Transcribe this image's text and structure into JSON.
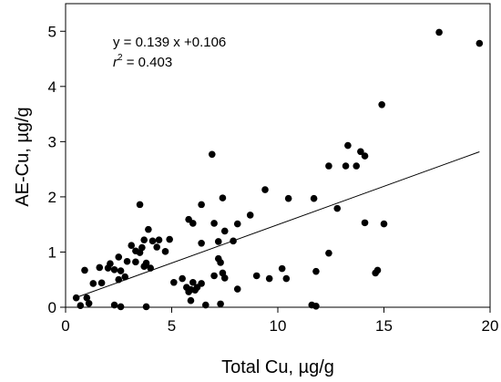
{
  "chart_data": {
    "type": "scatter",
    "xlabel": "Total Cu, µg/g",
    "ylabel": "AE-Cu, µg/g",
    "xlim": [
      0,
      20
    ],
    "ylim": [
      0,
      5.5
    ],
    "xticks": [
      "0",
      "5",
      "10",
      "15",
      "20"
    ],
    "yticks": [
      "0",
      "1",
      "2",
      "3",
      "4",
      "5"
    ],
    "grid": false,
    "annotation": {
      "equation": "y = 0.139 x +0.106",
      "r2_prefix": "r",
      "r2_sup": "2",
      "r2_value": " = 0.403"
    },
    "fit_line": {
      "slope": 0.139,
      "intercept": 0.106,
      "x_range": [
        0.6,
        19.5
      ]
    },
    "points": [
      [
        17.6,
        4.98
      ],
      [
        19.5,
        4.78
      ],
      [
        14.9,
        3.67
      ],
      [
        13.3,
        2.93
      ],
      [
        13.9,
        2.82
      ],
      [
        14.1,
        2.74
      ],
      [
        13.2,
        2.56
      ],
      [
        13.7,
        2.56
      ],
      [
        12.4,
        2.56
      ],
      [
        12.8,
        1.79
      ],
      [
        6.9,
        2.77
      ],
      [
        9.4,
        2.13
      ],
      [
        10.5,
        1.97
      ],
      [
        11.7,
        1.97
      ],
      [
        7.4,
        1.98
      ],
      [
        3.5,
        1.86
      ],
      [
        6.4,
        1.86
      ],
      [
        7.0,
        1.52
      ],
      [
        14.1,
        1.53
      ],
      [
        15.0,
        1.51
      ],
      [
        5.8,
        1.59
      ],
      [
        6.0,
        1.52
      ],
      [
        8.7,
        1.67
      ],
      [
        8.1,
        1.51
      ],
      [
        7.5,
        1.38
      ],
      [
        3.9,
        1.41
      ],
      [
        4.1,
        1.2
      ],
      [
        4.3,
        1.09
      ],
      [
        4.4,
        1.22
      ],
      [
        4.7,
        1.01
      ],
      [
        4.9,
        1.23
      ],
      [
        3.1,
        1.12
      ],
      [
        3.3,
        1.02
      ],
      [
        3.6,
        1.08
      ],
      [
        3.7,
        1.22
      ],
      [
        7.9,
        1.2
      ],
      [
        7.2,
        1.19
      ],
      [
        6.4,
        1.16
      ],
      [
        2.5,
        0.91
      ],
      [
        2.9,
        0.83
      ],
      [
        3.3,
        0.82
      ],
      [
        3.5,
        0.99
      ],
      [
        3.8,
        0.8
      ],
      [
        4.0,
        0.71
      ],
      [
        3.7,
        0.74
      ],
      [
        7.2,
        0.88
      ],
      [
        7.3,
        0.81
      ],
      [
        12.4,
        0.98
      ],
      [
        2.1,
        0.79
      ],
      [
        1.6,
        0.72
      ],
      [
        0.9,
        0.67
      ],
      [
        1.7,
        0.44
      ],
      [
        2.0,
        0.71
      ],
      [
        2.3,
        0.68
      ],
      [
        2.6,
        0.66
      ],
      [
        2.5,
        0.5
      ],
      [
        2.8,
        0.55
      ],
      [
        1.3,
        0.43
      ],
      [
        1.0,
        0.17
      ],
      [
        0.5,
        0.17
      ],
      [
        0.7,
        0.03
      ],
      [
        1.1,
        0.07
      ],
      [
        2.3,
        0.04
      ],
      [
        2.6,
        0.01
      ],
      [
        3.8,
        0.01
      ],
      [
        5.1,
        0.45
      ],
      [
        5.5,
        0.52
      ],
      [
        5.7,
        0.36
      ],
      [
        5.9,
        0.32
      ],
      [
        6.0,
        0.45
      ],
      [
        6.1,
        0.31
      ],
      [
        6.4,
        0.43
      ],
      [
        6.6,
        0.04
      ],
      [
        5.9,
        0.12
      ],
      [
        7.4,
        0.62
      ],
      [
        7.5,
        0.53
      ],
      [
        7.3,
        0.06
      ],
      [
        8.1,
        0.33
      ],
      [
        9.0,
        0.57
      ],
      [
        9.6,
        0.52
      ],
      [
        10.2,
        0.7
      ],
      [
        10.4,
        0.52
      ],
      [
        11.8,
        0.65
      ],
      [
        11.6,
        0.04
      ],
      [
        11.8,
        0.02
      ],
      [
        14.6,
        0.62
      ],
      [
        14.7,
        0.67
      ],
      [
        7.0,
        0.57
      ],
      [
        6.2,
        0.36
      ],
      [
        5.8,
        0.28
      ]
    ]
  }
}
